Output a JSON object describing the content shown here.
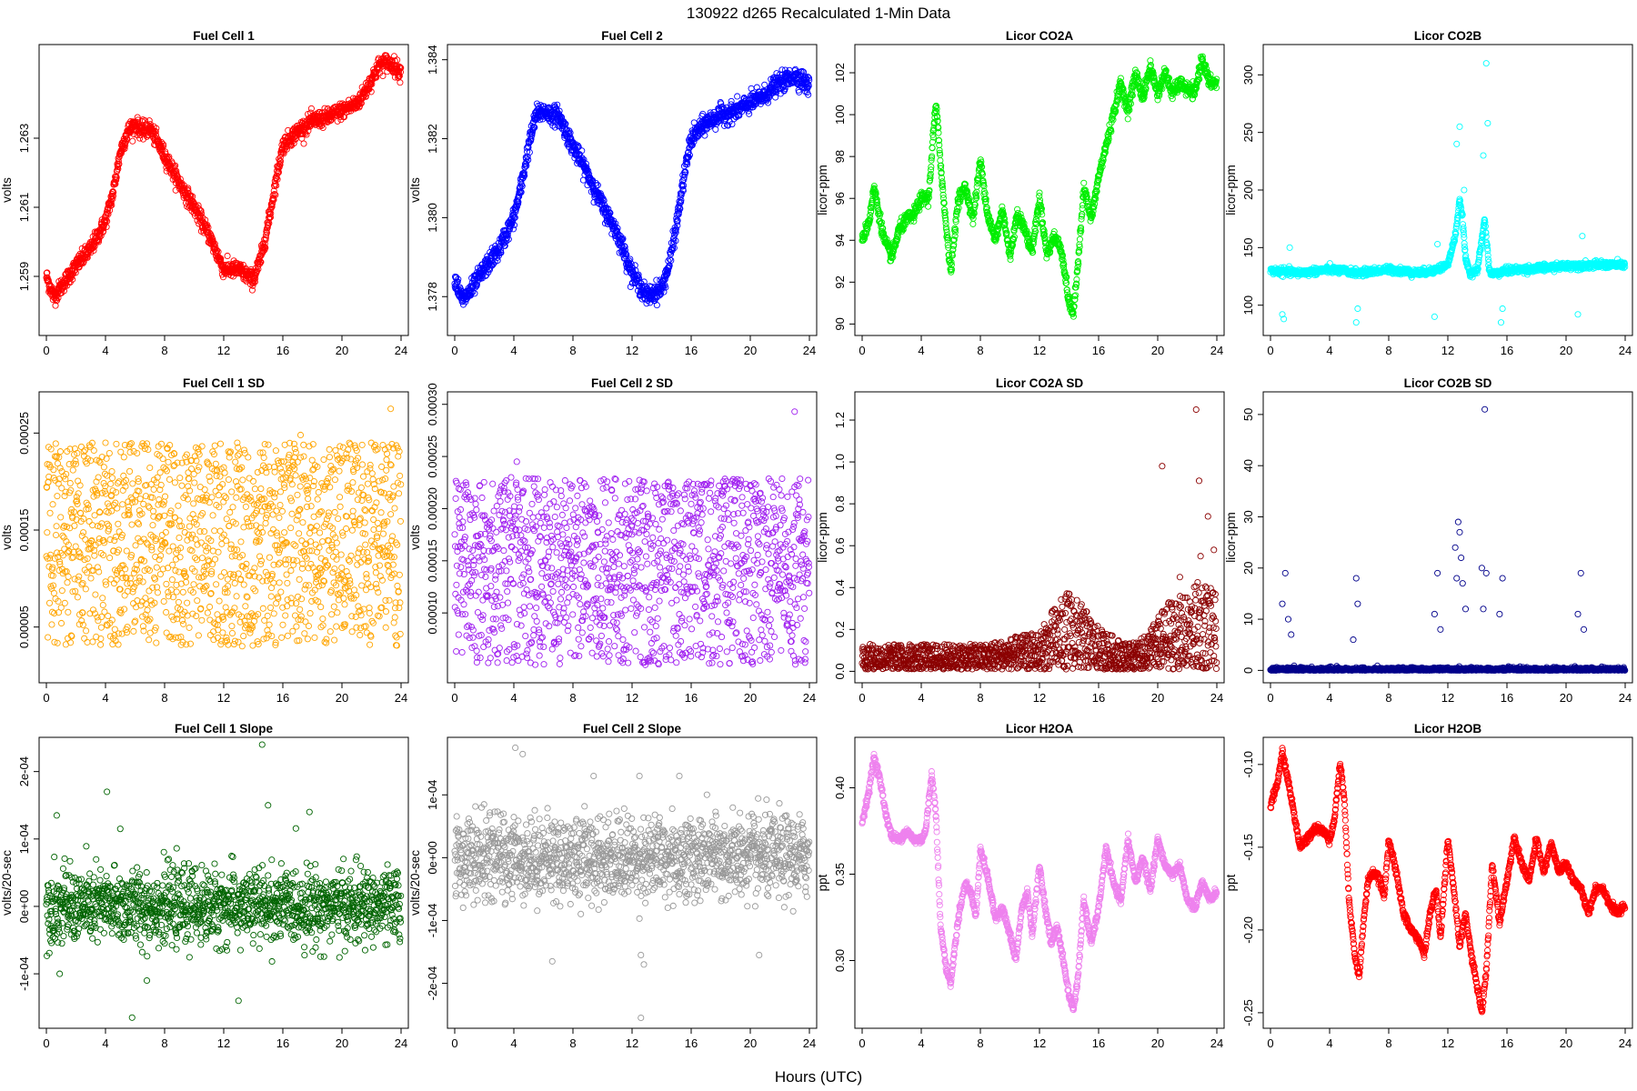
{
  "suptitle": "130922   d265   Recalculated 1-Min Data",
  "common_xlabel": "Hours (UTC)",
  "chart_data": [
    {
      "type": "scatter",
      "title": "Fuel Cell 1",
      "ylabel": "volts",
      "color": "#ff0000",
      "xlim": [
        0,
        24
      ],
      "ylim": [
        1.2575,
        1.2655
      ],
      "xticks": [
        0,
        4,
        8,
        12,
        16,
        20,
        24
      ],
      "yticks": [
        1.259,
        1.261,
        1.263
      ],
      "ytick_labels": [
        "1.259",
        "1.261",
        "1.263"
      ],
      "noise": 0.00012,
      "x": [
        0,
        0.5,
        1,
        2,
        3,
        4,
        4.5,
        5,
        5.5,
        6,
        6.5,
        7,
        7.5,
        8,
        9,
        10,
        11,
        12,
        13,
        14,
        14.5,
        15,
        15.5,
        16,
        17,
        18,
        19,
        20,
        21,
        21.5,
        22,
        22.5,
        23,
        23.5,
        24
      ],
      "y": [
        1.259,
        1.2584,
        1.2587,
        1.2593,
        1.2598,
        1.2606,
        1.2614,
        1.2626,
        1.2632,
        1.2634,
        1.2632,
        1.2633,
        1.2629,
        1.2625,
        1.2617,
        1.261,
        1.2602,
        1.2592,
        1.2592,
        1.2589,
        1.2595,
        1.2605,
        1.2617,
        1.2628,
        1.2632,
        1.2635,
        1.2636,
        1.2638,
        1.264,
        1.2643,
        1.2647,
        1.2651,
        1.2652,
        1.2651,
        1.2649
      ]
    },
    {
      "type": "scatter",
      "title": "Fuel Cell 2",
      "ylabel": "volts",
      "color": "#0000ff",
      "xlim": [
        0,
        24
      ],
      "ylim": [
        1.3772,
        1.3842
      ],
      "xticks": [
        0,
        4,
        8,
        12,
        16,
        20,
        24
      ],
      "yticks": [
        1.378,
        1.38,
        1.382,
        1.384
      ],
      "ytick_labels": [
        "1.378",
        "1.380",
        "1.382",
        "1.384"
      ],
      "noise": 0.00012,
      "x": [
        0,
        0.5,
        1,
        2,
        3,
        4,
        4.5,
        5,
        5.5,
        6,
        6.5,
        7,
        7.5,
        8,
        9,
        10,
        11,
        12,
        13,
        14,
        14.5,
        15,
        15.5,
        16,
        17,
        18,
        19,
        20,
        21,
        21.5,
        22,
        22.5,
        23,
        23.5,
        24
      ],
      "y": [
        1.3785,
        1.3779,
        1.3781,
        1.3787,
        1.3792,
        1.38,
        1.3808,
        1.3818,
        1.3826,
        1.3827,
        1.3826,
        1.3826,
        1.3822,
        1.3818,
        1.3811,
        1.3803,
        1.3796,
        1.3786,
        1.378,
        1.3782,
        1.3788,
        1.3798,
        1.381,
        1.382,
        1.3824,
        1.3826,
        1.3827,
        1.3829,
        1.3831,
        1.3833,
        1.3834,
        1.3835,
        1.3836,
        1.3835,
        1.3833
      ]
    },
    {
      "type": "scatter",
      "title": "Licor CO2A",
      "ylabel": "licor-ppm",
      "color": "#00ee00",
      "xlim": [
        0,
        24
      ],
      "ylim": [
        89.8,
        103.0
      ],
      "xticks": [
        0,
        4,
        8,
        12,
        16,
        20,
        24
      ],
      "yticks": [
        90,
        92,
        94,
        96,
        98,
        100,
        102
      ],
      "ytick_labels": [
        "90",
        "92",
        "94",
        "96",
        "98",
        "100",
        "102"
      ],
      "noise": 0.15,
      "x": [
        0,
        0.5,
        0.8,
        1.5,
        2,
        2.5,
        3,
        3.5,
        4,
        4.5,
        4.8,
        5,
        5.5,
        6,
        6.5,
        7,
        7.5,
        8,
        8.5,
        9,
        9.5,
        10,
        10.5,
        11,
        11.5,
        12,
        12.5,
        13,
        13.5,
        14,
        14.3,
        14.5,
        15,
        15.5,
        16,
        16.5,
        17,
        17.5,
        18,
        18.5,
        19,
        19.5,
        20,
        20.5,
        21,
        21.5,
        22,
        22.5,
        23,
        23.5,
        24
      ],
      "y": [
        94,
        95,
        96.5,
        94,
        93.2,
        94.5,
        95,
        95.2,
        96,
        96,
        99,
        100.5,
        96,
        92.5,
        96,
        96.5,
        95,
        97.8,
        95.2,
        94,
        95.5,
        93.2,
        95.3,
        94.5,
        93.5,
        96,
        93.3,
        94.2,
        93.5,
        91,
        90.5,
        92,
        96.5,
        95,
        97,
        98.5,
        100,
        101.5,
        100.2,
        102,
        100.8,
        102.3,
        101,
        102,
        101,
        101.5,
        101.2,
        101,
        102.7,
        101.5,
        101.5
      ]
    },
    {
      "type": "scatter",
      "title": "Licor CO2B",
      "ylabel": "licor-ppm",
      "color": "#00ffff",
      "xlim": [
        0,
        24
      ],
      "ylim": [
        80,
        320
      ],
      "xticks": [
        0,
        4,
        8,
        12,
        16,
        20,
        24
      ],
      "yticks": [
        100,
        150,
        200,
        250,
        300
      ],
      "ytick_labels": [
        "100",
        "150",
        "200",
        "250",
        "300"
      ],
      "noise": 1.5,
      "x": [
        0,
        2,
        4,
        6,
        8,
        10,
        11,
        12,
        12.5,
        12.8,
        13,
        13.2,
        13.5,
        14,
        14.5,
        14.8,
        15,
        16,
        18,
        20,
        22,
        24
      ],
      "y": [
        130,
        128,
        131,
        128,
        131,
        128,
        130,
        135,
        160,
        190,
        175,
        140,
        128,
        130,
        175,
        130,
        127,
        130,
        132,
        134,
        135,
        135
      ],
      "outliers": [
        [
          0.8,
          92
        ],
        [
          0.9,
          88
        ],
        [
          1.3,
          150
        ],
        [
          5.8,
          85
        ],
        [
          5.9,
          97
        ],
        [
          11.1,
          90
        ],
        [
          11.3,
          153
        ],
        [
          12.6,
          240
        ],
        [
          12.8,
          255
        ],
        [
          13.1,
          200
        ],
        [
          14.4,
          230
        ],
        [
          14.6,
          310
        ],
        [
          14.7,
          258
        ],
        [
          15.6,
          85
        ],
        [
          15.7,
          97
        ],
        [
          20.8,
          92
        ],
        [
          21.1,
          160
        ]
      ]
    },
    {
      "type": "scatter",
      "title": "Fuel Cell 1 SD",
      "ylabel": "volts",
      "color": "#ffa500",
      "xlim": [
        0,
        24
      ],
      "ylim": [
        0.0,
        0.000285
      ],
      "xticks": [
        0,
        4,
        8,
        12,
        16,
        20,
        24
      ],
      "yticks": [
        5e-05,
        0.00015,
        0.00025
      ],
      "ytick_labels": [
        "0.00005",
        "0.00015",
        "0.00025"
      ],
      "band_upper": [
        0.0001,
        0.00024
      ],
      "band_lower": [
        3e-05,
        0.0001
      ],
      "outliers": [
        [
          23.3,
          0.000275
        ],
        [
          17.2,
          0.000248
        ],
        [
          4.0,
          0.00024
        ]
      ]
    },
    {
      "type": "scatter",
      "title": "Fuel Cell 2 SD",
      "ylabel": "volts",
      "color": "#a020f0",
      "xlim": [
        0,
        24
      ],
      "ylim": [
        4e-05,
        0.000305
      ],
      "xticks": [
        0,
        4,
        8,
        12,
        16,
        20,
        24
      ],
      "yticks": [
        0.0001,
        0.00015,
        0.0002,
        0.00025,
        0.0003
      ],
      "ytick_labels": [
        "0.00010",
        "0.00015",
        "0.00020",
        "0.00025",
        "0.00030"
      ],
      "band_upper": [
        0.00011,
        0.00023
      ],
      "band_lower": [
        5e-05,
        0.00011
      ],
      "outliers": [
        [
          23.0,
          0.000293
        ],
        [
          4.2,
          0.000245
        ]
      ]
    },
    {
      "type": "scatter",
      "title": "Licor CO2A SD",
      "ylabel": "licor-ppm",
      "color": "#8b0000",
      "xlim": [
        0,
        24
      ],
      "ylim": [
        -0.02,
        1.3
      ],
      "xticks": [
        0,
        4,
        8,
        12,
        16,
        20,
        24
      ],
      "yticks": [
        0.0,
        0.2,
        0.4,
        0.6,
        0.8,
        1.0,
        1.2
      ],
      "ytick_labels": [
        "0.0",
        "0.2",
        "0.4",
        "0.6",
        "0.8",
        "1.0",
        "1.2"
      ],
      "envelope_x": [
        0,
        4,
        8,
        10,
        12,
        13,
        14,
        15,
        16,
        18,
        19,
        20,
        21,
        22,
        23,
        24
      ],
      "envelope_y": [
        0.12,
        0.12,
        0.12,
        0.15,
        0.18,
        0.3,
        0.38,
        0.3,
        0.2,
        0.12,
        0.15,
        0.25,
        0.35,
        0.35,
        0.45,
        0.35
      ],
      "outliers": [
        [
          20.3,
          0.98
        ],
        [
          22.6,
          1.25
        ],
        [
          22.8,
          0.91
        ],
        [
          23.4,
          0.74
        ],
        [
          22.9,
          0.55
        ],
        [
          23.8,
          0.58
        ],
        [
          21.5,
          0.45
        ]
      ]
    },
    {
      "type": "scatter",
      "title": "Licor CO2B SD",
      "ylabel": "licor-ppm",
      "color": "#00008b",
      "xlim": [
        0,
        24
      ],
      "ylim": [
        -1,
        53
      ],
      "xticks": [
        0,
        4,
        8,
        12,
        16,
        20,
        24
      ],
      "yticks": [
        0,
        10,
        20,
        30,
        40,
        50
      ],
      "ytick_labels": [
        "0",
        "10",
        "20",
        "30",
        "40",
        "50"
      ],
      "outliers": [
        [
          0.8,
          13
        ],
        [
          1.0,
          19
        ],
        [
          1.2,
          10
        ],
        [
          1.4,
          7
        ],
        [
          5.6,
          6
        ],
        [
          5.8,
          18
        ],
        [
          5.9,
          13
        ],
        [
          11.1,
          11
        ],
        [
          11.3,
          19
        ],
        [
          11.5,
          8
        ],
        [
          12.5,
          24
        ],
        [
          12.7,
          29
        ],
        [
          12.8,
          27
        ],
        [
          12.9,
          22
        ],
        [
          13.0,
          17
        ],
        [
          12.6,
          18
        ],
        [
          13.2,
          12
        ],
        [
          14.3,
          20
        ],
        [
          14.5,
          51
        ],
        [
          14.6,
          19
        ],
        [
          14.4,
          12
        ],
        [
          15.5,
          11
        ],
        [
          15.7,
          18
        ],
        [
          20.8,
          11
        ],
        [
          21.0,
          19
        ],
        [
          21.2,
          8
        ]
      ]
    },
    {
      "type": "scatter",
      "title": "Fuel Cell 1 Slope",
      "ylabel": "volts/20-sec",
      "color": "#006400",
      "xlim": [
        0,
        24
      ],
      "ylim": [
        -0.00017,
        0.00024
      ],
      "xticks": [
        0,
        4,
        8,
        12,
        16,
        20,
        24
      ],
      "yticks": [
        -0.0001,
        0.0,
        0.0001,
        0.0002
      ],
      "ytick_labels": [
        "-1e-04",
        "0e+00",
        "1e-04",
        "2e-04"
      ],
      "sd": 2.7e-05,
      "outliers": [
        [
          0.7,
          0.000135
        ],
        [
          4.1,
          0.00017
        ],
        [
          5.0,
          0.000115
        ],
        [
          14.6,
          0.00024
        ],
        [
          15.0,
          0.00015
        ],
        [
          17.8,
          0.00014
        ],
        [
          5.8,
          -0.000165
        ],
        [
          13.0,
          -0.00014
        ],
        [
          0.9,
          -0.0001
        ],
        [
          6.8,
          -0.00011
        ]
      ]
    },
    {
      "type": "scatter",
      "title": "Fuel Cell 2 Slope",
      "ylabel": "volts/20-sec",
      "color": "#999999",
      "xlim": [
        0,
        24
      ],
      "ylim": [
        -0.00026,
        0.00018
      ],
      "xticks": [
        0,
        4,
        8,
        12,
        16,
        20,
        24
      ],
      "yticks": [
        -0.0002,
        -0.0001,
        0.0,
        0.0001
      ],
      "ytick_labels": [
        "-2e-04",
        "-1e-04",
        "0e+00",
        "1e-04"
      ],
      "sd": 3.3e-05,
      "outliers": [
        [
          4.1,
          0.000175
        ],
        [
          4.6,
          0.000165
        ],
        [
          9.4,
          0.00013
        ],
        [
          12.5,
          0.00013
        ],
        [
          15.2,
          0.00013
        ],
        [
          12.6,
          -0.000255
        ],
        [
          12.6,
          -0.000155
        ],
        [
          12.8,
          -0.00017
        ],
        [
          6.6,
          -0.000165
        ],
        [
          20.6,
          -0.000155
        ]
      ]
    },
    {
      "type": "scatter",
      "title": "Licor H2OA",
      "ylabel": "ppt",
      "color": "#ee82ee",
      "xlim": [
        0,
        24
      ],
      "ylim": [
        0.265,
        0.425
      ],
      "xticks": [
        0,
        4,
        8,
        12,
        16,
        20,
        24
      ],
      "yticks": [
        0.3,
        0.35,
        0.4
      ],
      "ytick_labels": [
        "0.30",
        "0.35",
        "0.40"
      ],
      "noise": 0.0012,
      "x": [
        0,
        0.5,
        0.8,
        1.2,
        1.6,
        2,
        2.5,
        3,
        3.5,
        4,
        4.3,
        4.7,
        5,
        5.3,
        5.7,
        6,
        6.3,
        6.6,
        7,
        7.4,
        7.7,
        8,
        8.5,
        9,
        9.5,
        10,
        10.4,
        10.8,
        11.2,
        11.5,
        12,
        12.4,
        12.8,
        13.2,
        13.5,
        14,
        14.3,
        14.6,
        15,
        15.5,
        16,
        16.5,
        17,
        17.5,
        18,
        18.5,
        19,
        19.5,
        20,
        20.5,
        21,
        21.5,
        22,
        22.5,
        23,
        23.5,
        24
      ],
      "y": [
        0.38,
        0.4,
        0.418,
        0.405,
        0.385,
        0.372,
        0.37,
        0.375,
        0.37,
        0.37,
        0.375,
        0.408,
        0.385,
        0.32,
        0.295,
        0.287,
        0.31,
        0.33,
        0.345,
        0.338,
        0.325,
        0.365,
        0.348,
        0.325,
        0.33,
        0.315,
        0.3,
        0.33,
        0.34,
        0.315,
        0.355,
        0.33,
        0.31,
        0.32,
        0.305,
        0.28,
        0.272,
        0.29,
        0.335,
        0.31,
        0.33,
        0.365,
        0.345,
        0.335,
        0.37,
        0.345,
        0.36,
        0.34,
        0.37,
        0.355,
        0.35,
        0.355,
        0.335,
        0.33,
        0.345,
        0.335,
        0.34
      ]
    },
    {
      "type": "scatter",
      "title": "Licor H2OB",
      "ylabel": "ppt",
      "color": "#ff0000",
      "xlim": [
        0,
        24
      ],
      "ylim": [
        -0.255,
        -0.088
      ],
      "xticks": [
        0,
        4,
        8,
        12,
        16,
        20,
        24
      ],
      "yticks": [
        -0.25,
        -0.2,
        -0.15,
        -0.1
      ],
      "ytick_labels": [
        "-0.25",
        "-0.20",
        "-0.15",
        "-0.10"
      ],
      "noise": 0.0012,
      "x": [
        0,
        0.5,
        0.8,
        1.2,
        1.6,
        2,
        2.5,
        3,
        3.5,
        4,
        4.3,
        4.7,
        5,
        5.3,
        5.7,
        6,
        6.3,
        6.6,
        7,
        7.4,
        7.7,
        8,
        8.5,
        9,
        9.5,
        10,
        10.4,
        10.8,
        11.2,
        11.5,
        12,
        12.4,
        12.8,
        13.2,
        13.5,
        14,
        14.3,
        14.6,
        15,
        15.5,
        16,
        16.5,
        17,
        17.5,
        18,
        18.5,
        19,
        19.5,
        20,
        20.5,
        21,
        21.5,
        22,
        22.5,
        23,
        23.5,
        24
      ],
      "y": [
        -0.125,
        -0.11,
        -0.093,
        -0.11,
        -0.13,
        -0.15,
        -0.145,
        -0.138,
        -0.14,
        -0.145,
        -0.135,
        -0.1,
        -0.12,
        -0.18,
        -0.215,
        -0.228,
        -0.195,
        -0.17,
        -0.165,
        -0.17,
        -0.18,
        -0.145,
        -0.165,
        -0.19,
        -0.2,
        -0.205,
        -0.215,
        -0.19,
        -0.175,
        -0.205,
        -0.145,
        -0.175,
        -0.21,
        -0.19,
        -0.21,
        -0.235,
        -0.25,
        -0.225,
        -0.16,
        -0.195,
        -0.17,
        -0.145,
        -0.16,
        -0.17,
        -0.145,
        -0.165,
        -0.148,
        -0.165,
        -0.16,
        -0.17,
        -0.175,
        -0.19,
        -0.175,
        -0.175,
        -0.185,
        -0.19,
        -0.185
      ]
    }
  ]
}
